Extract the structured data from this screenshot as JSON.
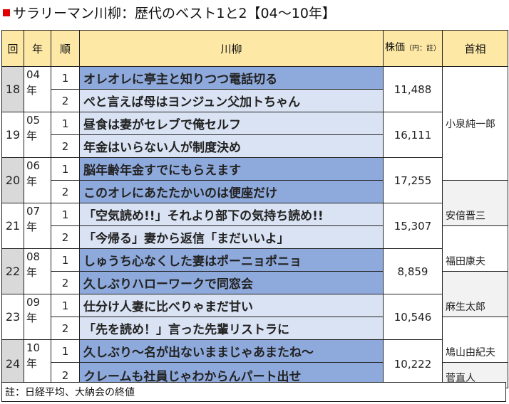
{
  "title": "サラリーマン川柳：歴代のベスト1と2【04～10年】",
  "colors": {
    "title_square": "#e00000",
    "header_bg": "#fde8a6",
    "row_dark": "#8ea9db",
    "row_light": "#dae3f3"
  },
  "headers": {
    "kai": "回",
    "year": "年",
    "jun": "順",
    "senryu": "川柳",
    "price_main": "株価",
    "price_note": "（円：註）",
    "pm": "首相"
  },
  "rows": [
    {
      "kai": "18",
      "year": "04年",
      "price": "11,488",
      "items": [
        {
          "rank": "1",
          "text": "オレオレに亭主と知りつつ電話切る"
        },
        {
          "rank": "2",
          "text": "ぺと言えば母はヨンジュン父加トちゃん"
        }
      ]
    },
    {
      "kai": "19",
      "year": "05年",
      "price": "16,111",
      "items": [
        {
          "rank": "1",
          "text": "昼食は妻がセレブで俺セルフ"
        },
        {
          "rank": "2",
          "text": "年金はいらない人が制度決め"
        }
      ]
    },
    {
      "kai": "20",
      "year": "06年",
      "price": "17,255",
      "items": [
        {
          "rank": "1",
          "text": "脳年齢年金すでにもらえます"
        },
        {
          "rank": "2",
          "text": "このオレにあたたかいのは便座だけ"
        }
      ]
    },
    {
      "kai": "21",
      "year": "07年",
      "price": "15,307",
      "items": [
        {
          "rank": "1",
          "text": "「空気読め!!」それより部下の気持ち読め!!"
        },
        {
          "rank": "2",
          "text": "「今帰る」妻から返信「まだいいよ」"
        }
      ]
    },
    {
      "kai": "22",
      "year": "08年",
      "price": "8,859",
      "items": [
        {
          "rank": "1",
          "text": "しゅうち心なくした妻はポーニョポニョ"
        },
        {
          "rank": "2",
          "text": "久しぶりハローワークで同窓会"
        }
      ]
    },
    {
      "kai": "23",
      "year": "09年",
      "price": "10,546",
      "items": [
        {
          "rank": "1",
          "text": "仕分け人妻に比べりゃまだ甘い"
        },
        {
          "rank": "2",
          "text": "「先を読め！」言った先輩リストラに"
        }
      ]
    },
    {
      "kai": "24",
      "year": "10年",
      "price": "10,222",
      "items": [
        {
          "rank": "1",
          "text": "久しぶり～名が出ないままじゃあまたね～"
        },
        {
          "rank": "2",
          "text": "クレームも社員じゃわからんパート出せ"
        }
      ]
    }
  ],
  "prime_ministers": [
    "小泉純一郎",
    "安倍晋三",
    "福田康夫",
    "麻生太郎",
    "鳩山由紀夫",
    "菅直人"
  ],
  "note": "註：日経平均、大納会の終値"
}
